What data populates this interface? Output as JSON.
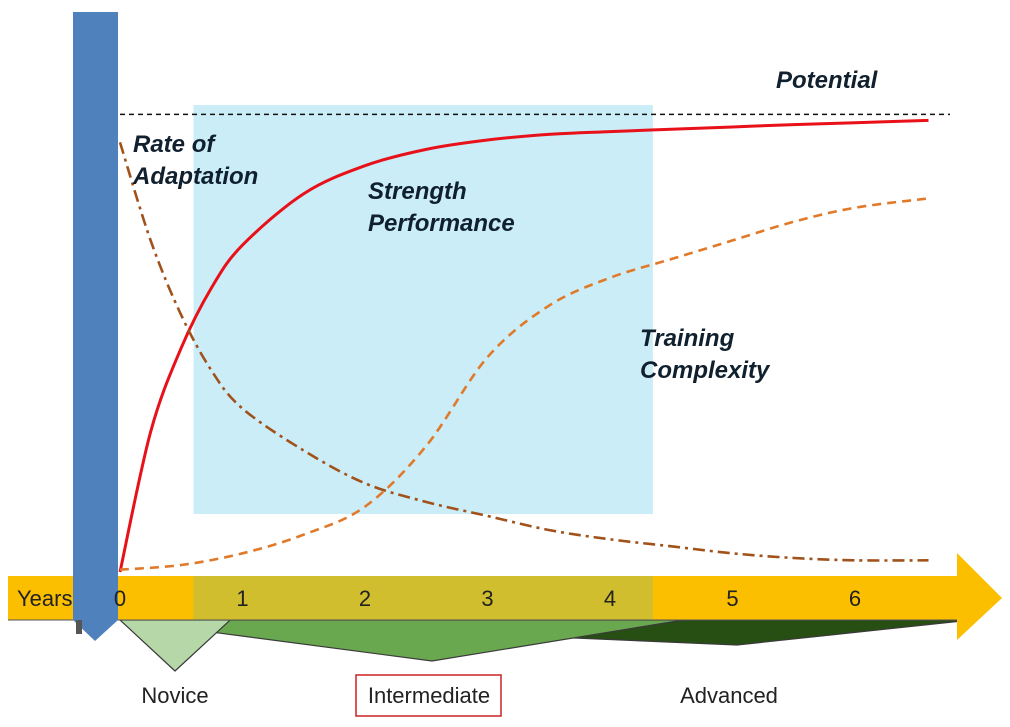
{
  "chart_data": {
    "type": "line",
    "title": "",
    "xlabel": "Years",
    "ylabel": "",
    "x_ticks": [
      "0",
      "1",
      "2",
      "3",
      "4",
      "5",
      "6"
    ],
    "xlim": [
      0,
      6.6
    ],
    "ylim": [
      0,
      1
    ],
    "potential_label": "Potential",
    "potential_level": 0.98,
    "highlight_range": {
      "from": 0.6,
      "to": 4.35,
      "label": "Intermediate"
    },
    "series": [
      {
        "name": "Strength Performance",
        "label_lines": [
          "Strength",
          "Performance"
        ],
        "color": "#e8111a",
        "style": "solid",
        "x": [
          0,
          0.25,
          0.5,
          0.75,
          1.0,
          1.5,
          2.0,
          2.5,
          3.0,
          3.5,
          4.0,
          4.5,
          5.0,
          5.5,
          6.0,
          6.6
        ],
        "y": [
          0,
          0.3,
          0.48,
          0.61,
          0.7,
          0.81,
          0.87,
          0.905,
          0.925,
          0.937,
          0.943,
          0.948,
          0.953,
          0.958,
          0.962,
          0.967
        ]
      },
      {
        "name": "Rate of Adaptation",
        "label_lines": [
          "Rate of",
          "Adaptation"
        ],
        "color": "#a0521a",
        "style": "dash-dot",
        "x": [
          0,
          0.25,
          0.5,
          0.75,
          1.0,
          1.5,
          2.0,
          2.5,
          3.0,
          3.5,
          4.0,
          4.5,
          5.0,
          5.5,
          6.0,
          6.6
        ],
        "y": [
          0.92,
          0.71,
          0.55,
          0.43,
          0.35,
          0.26,
          0.19,
          0.15,
          0.12,
          0.09,
          0.07,
          0.055,
          0.04,
          0.03,
          0.025,
          0.025
        ]
      },
      {
        "name": "Training Complexity",
        "label_lines": [
          "Training",
          "Complexity"
        ],
        "color": "#e07a2a",
        "style": "dashed",
        "x": [
          0,
          0.5,
          1.0,
          1.5,
          2.0,
          2.5,
          3.0,
          3.5,
          4.0,
          4.5,
          5.0,
          5.5,
          6.0,
          6.6
        ],
        "y": [
          0.005,
          0.015,
          0.04,
          0.08,
          0.14,
          0.27,
          0.46,
          0.57,
          0.63,
          0.67,
          0.71,
          0.75,
          0.78,
          0.8
        ]
      }
    ],
    "stages": [
      {
        "name": "Novice",
        "boxed": false,
        "color": "#b6d7a8",
        "from": 0,
        "to": 0.9
      },
      {
        "name": "Intermediate",
        "boxed": true,
        "color": "#6aa84f",
        "from": 0,
        "to": 4.6
      },
      {
        "name": "Advanced",
        "boxed": false,
        "color": "#274e13",
        "from": 0.3,
        "to": 6.95
      }
    ]
  },
  "colors": {
    "time_arrow": "#fbbf00",
    "time_arrow_highlight": "#d0be2f",
    "highlight_band": "#cbedf8",
    "start_bar": "#4f81bd",
    "stage_box_border": "#cc2222"
  }
}
